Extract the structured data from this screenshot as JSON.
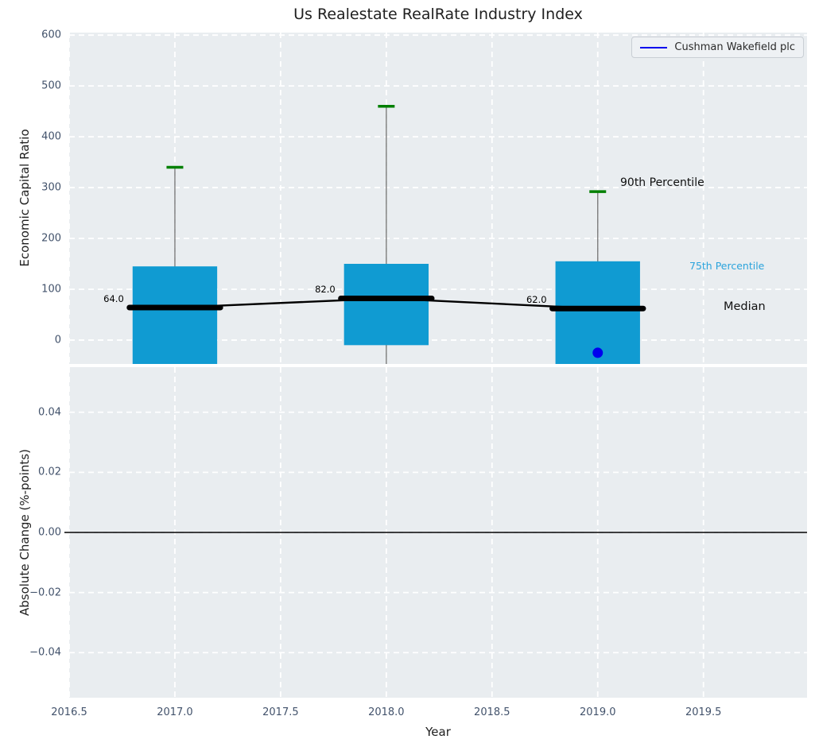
{
  "figure": {
    "title": "Us Realestate RealRate Industry Index",
    "xlabel": "Year",
    "legend": {
      "label": "Cushman Wakefield plc"
    }
  },
  "annotations": {
    "p90_label": "90th Percentile",
    "p75_label": "75th Percentile",
    "median_label": "Median"
  },
  "colors": {
    "axes_background": "#e9edf0",
    "grid": "#ffffff",
    "box_fill": "#109bd2",
    "whisker_cap": "#008000",
    "whisker_line": "#7a7a7a",
    "median_line": "#000000",
    "company_series": "#0000ee",
    "tick_label": "#42526b",
    "p75_annotation": "#2aa3dc"
  },
  "chart_data": [
    {
      "type": "boxplot",
      "axis": "top",
      "title": "Us Realestate RealRate Industry Index",
      "ylabel": "Economic Capital Ratio",
      "grid": "white dashed, on",
      "legend_position": "upper right",
      "xlim": [
        2016.5,
        2019.99
      ],
      "ylim": [
        -47,
        605
      ],
      "xticks": {
        "values": [
          2016.5,
          2017.0,
          2017.5,
          2018.0,
          2018.5,
          2019.0,
          2019.5
        ],
        "labels": [
          "2016.5",
          "2017.0",
          "2017.5",
          "2018.0",
          "2018.5",
          "2019.0",
          "2019.5"
        ]
      },
      "yticks": {
        "values": [
          0,
          100,
          200,
          300,
          400,
          500,
          600
        ],
        "labels": [
          "0",
          "100",
          "200",
          "300",
          "400",
          "500",
          "600"
        ]
      },
      "box_width_years": 0.4,
      "boxes": [
        {
          "year": 2017,
          "p90": 340,
          "q3": 145,
          "median": 64,
          "q1": -47,
          "q1_clipped": true,
          "median_label": "64.0"
        },
        {
          "year": 2018,
          "p90": 460,
          "q3": 150,
          "median": 82,
          "q1": -10,
          "q1_clipped": false,
          "median_label": "82.0"
        },
        {
          "year": 2019,
          "p90": 292,
          "q3": 155,
          "median": 62,
          "q1": -47,
          "q1_clipped": true,
          "median_label": "62.0"
        }
      ],
      "median_trend": [
        [
          2017,
          64
        ],
        [
          2018,
          82
        ],
        [
          2019,
          62
        ]
      ],
      "company_point": {
        "name": "Cushman Wakefield plc",
        "year": 2019,
        "value": -25
      }
    },
    {
      "type": "line",
      "axis": "bottom",
      "ylabel": "Absolute Change (%-points)",
      "xlabel": "Year",
      "grid": "white dashed, on",
      "xlim": [
        2016.5,
        2019.99
      ],
      "ylim": [
        -0.055,
        0.055
      ],
      "xticks": {
        "values": [
          2016.5,
          2017.0,
          2017.5,
          2018.0,
          2018.5,
          2019.0,
          2019.5
        ],
        "labels": [
          "2016.5",
          "2017.0",
          "2017.5",
          "2018.0",
          "2018.5",
          "2019.0",
          "2019.5"
        ]
      },
      "yticks": {
        "values": [
          0.04,
          0.02,
          0.0,
          -0.02,
          -0.04
        ],
        "labels": [
          "0.04",
          "0.02",
          "0.00",
          "−0.02",
          "−0.04"
        ]
      },
      "zero_line": 0.0,
      "series": []
    }
  ]
}
